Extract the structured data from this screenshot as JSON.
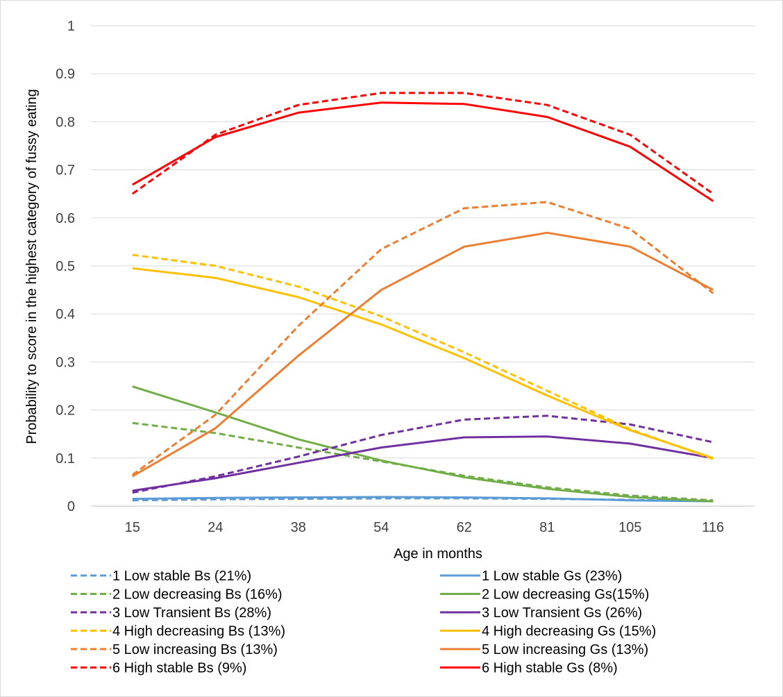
{
  "chart_data": {
    "type": "line",
    "title": "",
    "xlabel": "Age in months",
    "ylabel": "Probability to  score in the highest category of fussy eating",
    "categories": [
      "15",
      "24",
      "38",
      "54",
      "62",
      "81",
      "105",
      "116"
    ],
    "ylim": [
      0,
      1
    ],
    "yticks": [
      "0",
      "0.1",
      "0.2",
      "0.3",
      "0.4",
      "0.5",
      "0.6",
      "0.7",
      "0.8",
      "0.9",
      "1"
    ],
    "grid": true,
    "legend_position": "bottom",
    "series": [
      {
        "name": "1 Low stable Bs (21%)",
        "color": "#5b9bd5",
        "dash": true,
        "values": [
          0.012,
          0.014,
          0.015,
          0.016,
          0.016,
          0.015,
          0.013,
          0.01
        ]
      },
      {
        "name": "1 Low stable Gs (23%)",
        "color": "#5b9bd5",
        "dash": false,
        "values": [
          0.015,
          0.017,
          0.018,
          0.019,
          0.018,
          0.016,
          0.012,
          0.01
        ]
      },
      {
        "name": "2 Low decreasing Bs (16%)",
        "color": "#70ad47",
        "dash": true,
        "values": [
          0.173,
          0.152,
          0.122,
          0.093,
          0.063,
          0.039,
          0.022,
          0.012
        ]
      },
      {
        "name": "2  Low decreasing Gs(15%)",
        "color": "#70ad47",
        "dash": false,
        "values": [
          0.249,
          0.195,
          0.139,
          0.095,
          0.06,
          0.036,
          0.019,
          0.01
        ]
      },
      {
        "name": "3 Low Transient Bs (28%)",
        "color": "#7030a0",
        "dash": true,
        "values": [
          0.028,
          0.062,
          0.103,
          0.148,
          0.18,
          0.188,
          0.17,
          0.133
        ]
      },
      {
        "name": "3  Low Transient Gs (26%)",
        "color": "#7030a0",
        "dash": false,
        "values": [
          0.032,
          0.058,
          0.09,
          0.122,
          0.143,
          0.145,
          0.13,
          0.1
        ]
      },
      {
        "name": "4 High decreasing Bs (13%)",
        "color": "#ffc000",
        "dash": true,
        "values": [
          0.523,
          0.5,
          0.457,
          0.395,
          0.32,
          0.24,
          0.16,
          0.098
        ]
      },
      {
        "name": "4 High decreasing Gs (15%)",
        "color": "#ffc000",
        "dash": false,
        "values": [
          0.495,
          0.475,
          0.435,
          0.378,
          0.308,
          0.23,
          0.158,
          0.1
        ]
      },
      {
        "name": "5 Low increasing Bs (13%)",
        "color": "#ed7d31",
        "dash": true,
        "values": [
          0.065,
          0.19,
          0.375,
          0.535,
          0.62,
          0.633,
          0.577,
          0.443
        ]
      },
      {
        "name": "5 Low increasing Gs (13%)",
        "color": "#ed7d31",
        "dash": false,
        "values": [
          0.062,
          0.162,
          0.313,
          0.45,
          0.54,
          0.569,
          0.54,
          0.45
        ]
      },
      {
        "name": "6  High stable Bs (9%)",
        "color": "#ff0000",
        "dash": true,
        "values": [
          0.65,
          0.773,
          0.835,
          0.86,
          0.86,
          0.835,
          0.773,
          0.65
        ]
      },
      {
        "name": "6 High stable Gs (8%)",
        "color": "#ff0000",
        "dash": false,
        "values": [
          0.669,
          0.768,
          0.819,
          0.84,
          0.837,
          0.81,
          0.748,
          0.635
        ]
      }
    ]
  }
}
